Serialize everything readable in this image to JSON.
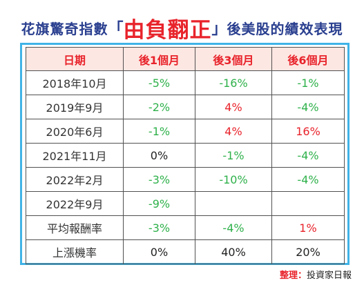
{
  "title": {
    "prefix": "花旗驚奇指數",
    "quote_open": "「",
    "highlight": "由負翻正",
    "quote_close": "」",
    "suffix": "後美股的績效表現"
  },
  "table": {
    "headers": [
      "日期",
      "後1個月",
      "後3個月",
      "後6個月"
    ],
    "rows": [
      {
        "label": "2018年10月",
        "cells": [
          {
            "v": "-5%",
            "c": "neg"
          },
          {
            "v": "-16%",
            "c": "neg"
          },
          {
            "v": "-1%",
            "c": "neg"
          }
        ]
      },
      {
        "label": "2019年9月",
        "cells": [
          {
            "v": "-2%",
            "c": "neg"
          },
          {
            "v": "4%",
            "c": "pos"
          },
          {
            "v": "-4%",
            "c": "neg"
          }
        ]
      },
      {
        "label": "2020年6月",
        "cells": [
          {
            "v": "-1%",
            "c": "neg"
          },
          {
            "v": "4%",
            "c": "pos"
          },
          {
            "v": "16%",
            "c": "pos"
          }
        ]
      },
      {
        "label": "2021年11月",
        "cells": [
          {
            "v": "0%",
            "c": "neu"
          },
          {
            "v": "-1%",
            "c": "neg"
          },
          {
            "v": "-4%",
            "c": "neg"
          }
        ]
      },
      {
        "label": "2022年2月",
        "cells": [
          {
            "v": "-3%",
            "c": "neg"
          },
          {
            "v": "-10%",
            "c": "neg"
          },
          {
            "v": "-4%",
            "c": "neg"
          }
        ]
      },
      {
        "label": "2022年9月",
        "cells": [
          {
            "v": "-9%",
            "c": "neg"
          },
          {
            "v": "",
            "c": "neu"
          },
          {
            "v": "",
            "c": "neu"
          }
        ]
      },
      {
        "label": "平均報酬率",
        "cells": [
          {
            "v": "-3%",
            "c": "neg"
          },
          {
            "v": "-4%",
            "c": "neg"
          },
          {
            "v": "1%",
            "c": "pos"
          }
        ]
      },
      {
        "label": "上漲機率",
        "cells": [
          {
            "v": "0%",
            "c": "neu"
          },
          {
            "v": "40%",
            "c": "neu"
          },
          {
            "v": "20%",
            "c": "neu"
          }
        ]
      }
    ]
  },
  "source": {
    "label": "整理",
    "separator": "：",
    "value": "投資家日報"
  },
  "colors": {
    "negative": "#2eb14a",
    "positive": "#e8232b",
    "header_bg": "#fde7e2",
    "frame": "#3fb3e6",
    "title": "#2a3f8f"
  }
}
